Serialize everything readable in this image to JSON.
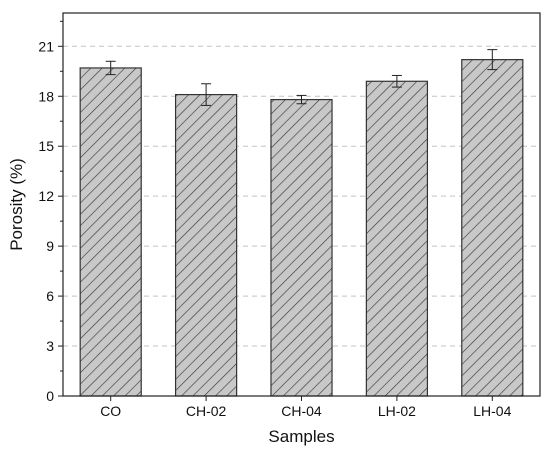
{
  "chart_data": {
    "type": "bar",
    "title": "",
    "xlabel": "Samples",
    "ylabel": "Porosity (%)",
    "categories": [
      "CO",
      "CH-02",
      "CH-04",
      "LH-02",
      "LH-04"
    ],
    "values": [
      19.7,
      18.1,
      17.8,
      18.9,
      20.2
    ],
    "errors": [
      0.4,
      0.65,
      0.25,
      0.35,
      0.6
    ],
    "ylim": [
      0,
      23
    ],
    "yticks": [
      0,
      3,
      6,
      9,
      12,
      15,
      18,
      21
    ],
    "grid": "horizontal dashed",
    "bar_fill": "#c8c8c8",
    "bar_pattern": "diagonal hatch",
    "bar_stroke": "#333333"
  }
}
